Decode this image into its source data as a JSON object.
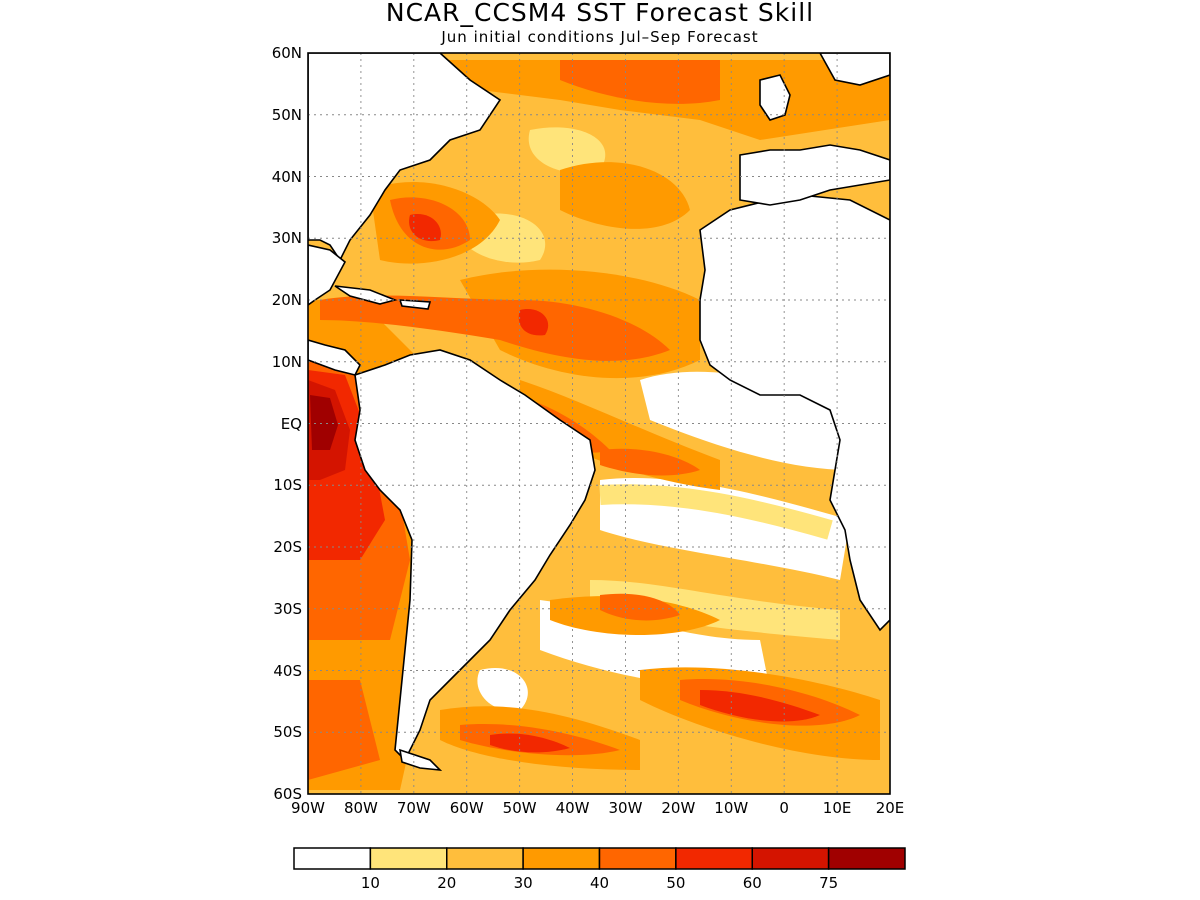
{
  "title": "NCAR_CCSM4 SST Forecast Skill",
  "subtitle": "Jun initial conditions  Jul–Sep Forecast",
  "axes": {
    "lat_labels": [
      "60N",
      "50N",
      "40N",
      "30N",
      "20N",
      "10N",
      "EQ",
      "10S",
      "20S",
      "30S",
      "40S",
      "50S",
      "60S"
    ],
    "lon_labels": [
      "90W",
      "80W",
      "70W",
      "60W",
      "50W",
      "40W",
      "30W",
      "20W",
      "10W",
      "0",
      "10E",
      "20E"
    ]
  },
  "colorbar": {
    "tick_labels": [
      "10",
      "20",
      "30",
      "40",
      "50",
      "60",
      "75"
    ],
    "colors": [
      "#ffffff",
      "#ffe47a",
      "#ffbe3c",
      "#ff9a00",
      "#ff6600",
      "#f22800",
      "#d41400",
      "#a00000"
    ]
  },
  "map": {
    "region": "Atlantic Ocean and eastern Pacific",
    "lon_range": [
      -90,
      20
    ],
    "lat_range": [
      -60,
      60
    ],
    "grid": "dotted"
  }
}
